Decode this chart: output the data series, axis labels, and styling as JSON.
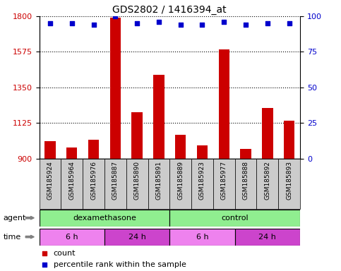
{
  "title": "GDS2802 / 1416394_at",
  "samples": [
    "GSM185924",
    "GSM185964",
    "GSM185976",
    "GSM185887",
    "GSM185890",
    "GSM185891",
    "GSM185889",
    "GSM185923",
    "GSM185977",
    "GSM185888",
    "GSM185892",
    "GSM185893"
  ],
  "bar_values": [
    1010,
    970,
    1020,
    1790,
    1195,
    1430,
    1050,
    985,
    1590,
    960,
    1220,
    1140
  ],
  "percentile_values": [
    95,
    95,
    94,
    100,
    95,
    96,
    94,
    94,
    96,
    94,
    95,
    95
  ],
  "bar_color": "#cc0000",
  "dot_color": "#0000cc",
  "ylim_left": [
    900,
    1800
  ],
  "ylim_right": [
    0,
    100
  ],
  "yticks_left": [
    900,
    1125,
    1350,
    1575,
    1800
  ],
  "yticks_right": [
    0,
    25,
    50,
    75,
    100
  ],
  "agent_groups": [
    {
      "label": "dexamethasone",
      "start": 0,
      "end": 6,
      "color": "#90ee90"
    },
    {
      "label": "control",
      "start": 6,
      "end": 12,
      "color": "#90ee90"
    }
  ],
  "time_groups": [
    {
      "label": "6 h",
      "start": 0,
      "end": 3,
      "color": "#ee82ee"
    },
    {
      "label": "24 h",
      "start": 3,
      "end": 6,
      "color": "#cc44cc"
    },
    {
      "label": "6 h",
      "start": 6,
      "end": 9,
      "color": "#ee82ee"
    },
    {
      "label": "24 h",
      "start": 9,
      "end": 12,
      "color": "#cc44cc"
    }
  ],
  "legend_items": [
    {
      "label": "count",
      "color": "#cc0000"
    },
    {
      "label": "percentile rank within the sample",
      "color": "#0000cc"
    }
  ],
  "background_color": "#ffffff",
  "tick_label_color_left": "#cc0000",
  "tick_label_color_right": "#0000cc",
  "agent_label": "agent",
  "time_label": "time",
  "tick_bg_color": "#cccccc",
  "tick_font_size": 6.5,
  "bar_width": 0.5
}
